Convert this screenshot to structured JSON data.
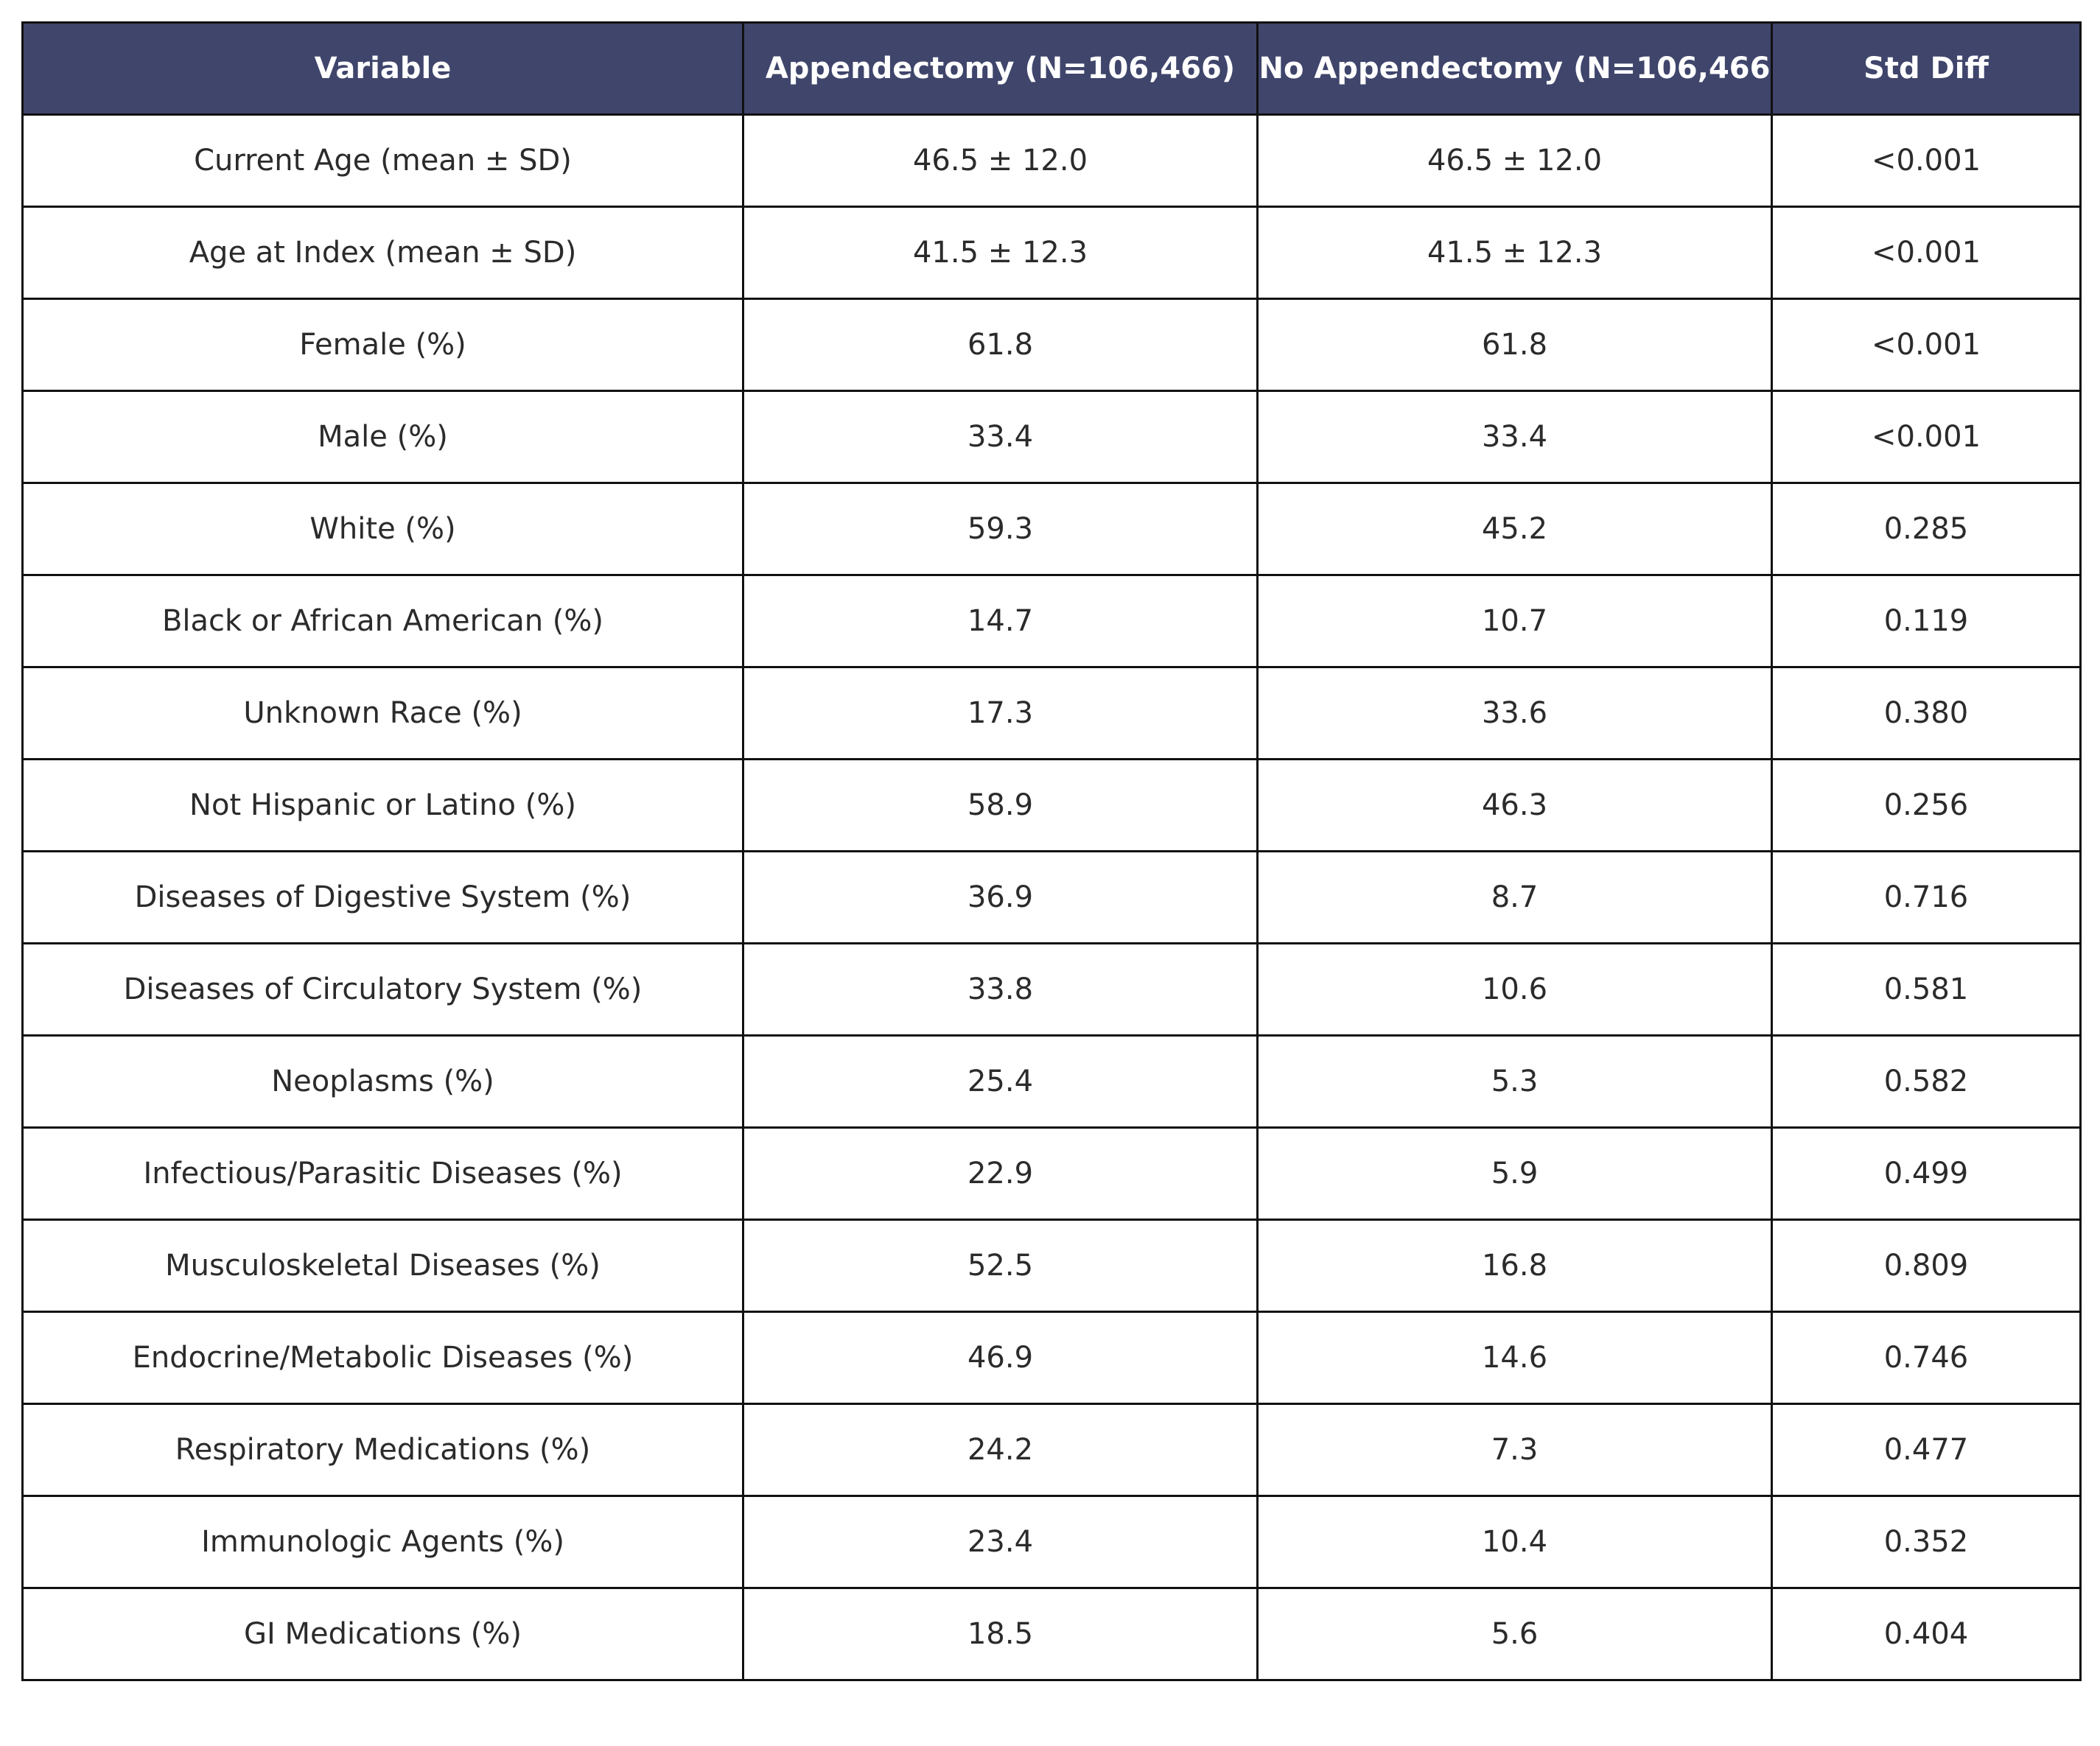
{
  "chart_data": {
    "type": "table",
    "columns": [
      "Variable",
      "Appendectomy (N=106,466)",
      "No Appendectomy (N=106,466",
      "Std Diff"
    ],
    "rows": [
      [
        "Current Age (mean ± SD)",
        "46.5 ± 12.0",
        "46.5 ± 12.0",
        "<0.001"
      ],
      [
        "Age at Index (mean ± SD)",
        "41.5 ± 12.3",
        "41.5 ± 12.3",
        "<0.001"
      ],
      [
        "Female (%)",
        "61.8",
        "61.8",
        "<0.001"
      ],
      [
        "Male (%)",
        "33.4",
        "33.4",
        "<0.001"
      ],
      [
        "White (%)",
        "59.3",
        "45.2",
        "0.285"
      ],
      [
        "Black or African American (%)",
        "14.7",
        "10.7",
        "0.119"
      ],
      [
        "Unknown Race (%)",
        "17.3",
        "33.6",
        "0.380"
      ],
      [
        "Not Hispanic or Latino (%)",
        "58.9",
        "46.3",
        "0.256"
      ],
      [
        "Diseases of Digestive System (%)",
        "36.9",
        "8.7",
        "0.716"
      ],
      [
        "Diseases of Circulatory System (%)",
        "33.8",
        "10.6",
        "0.581"
      ],
      [
        "Neoplasms (%)",
        "25.4",
        "5.3",
        "0.582"
      ],
      [
        "Infectious/Parasitic Diseases (%)",
        "22.9",
        "5.9",
        "0.499"
      ],
      [
        "Musculoskeletal Diseases (%)",
        "52.5",
        "16.8",
        "0.809"
      ],
      [
        "Endocrine/Metabolic Diseases (%)",
        "46.9",
        "14.6",
        "0.746"
      ],
      [
        "Respiratory Medications (%)",
        "24.2",
        "7.3",
        "0.477"
      ],
      [
        "Immunologic Agents (%)",
        "23.4",
        "10.4",
        "0.352"
      ],
      [
        "GI Medications (%)",
        "18.5",
        "5.6",
        "0.404"
      ]
    ],
    "header_color": "#3f456b",
    "header_text_color": "#ffffff",
    "border_color": "#111111"
  }
}
